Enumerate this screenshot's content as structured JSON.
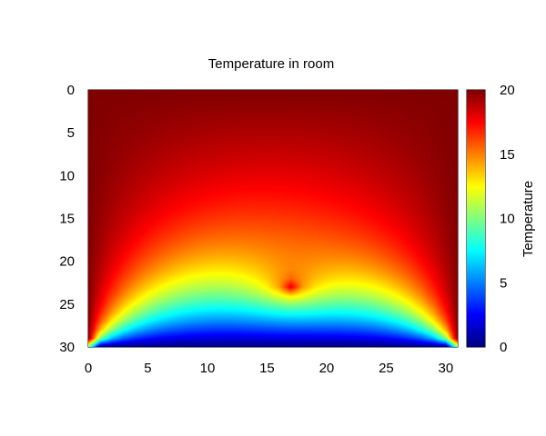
{
  "chart_data": {
    "type": "heatmap",
    "title": "Temperature in room",
    "xlabel": "",
    "ylabel": "",
    "colorbar_label": "Temperature",
    "colormap": "jet",
    "xlim": [
      0,
      31
    ],
    "ylim": [
      0,
      30
    ],
    "y_inverted": true,
    "clim": [
      0,
      20
    ],
    "x_ticks": [
      0,
      5,
      10,
      15,
      20,
      25,
      30
    ],
    "y_ticks": [
      0,
      5,
      10,
      15,
      20,
      25,
      30
    ],
    "colorbar_ticks": [
      0,
      5,
      10,
      15,
      20
    ],
    "grid": false,
    "boundary": {
      "bottom_value": 0,
      "side_value": 20,
      "top_value": 20
    },
    "heat_source": {
      "x": 17,
      "y": 23,
      "value": 18
    },
    "frame_color": "#000000"
  }
}
